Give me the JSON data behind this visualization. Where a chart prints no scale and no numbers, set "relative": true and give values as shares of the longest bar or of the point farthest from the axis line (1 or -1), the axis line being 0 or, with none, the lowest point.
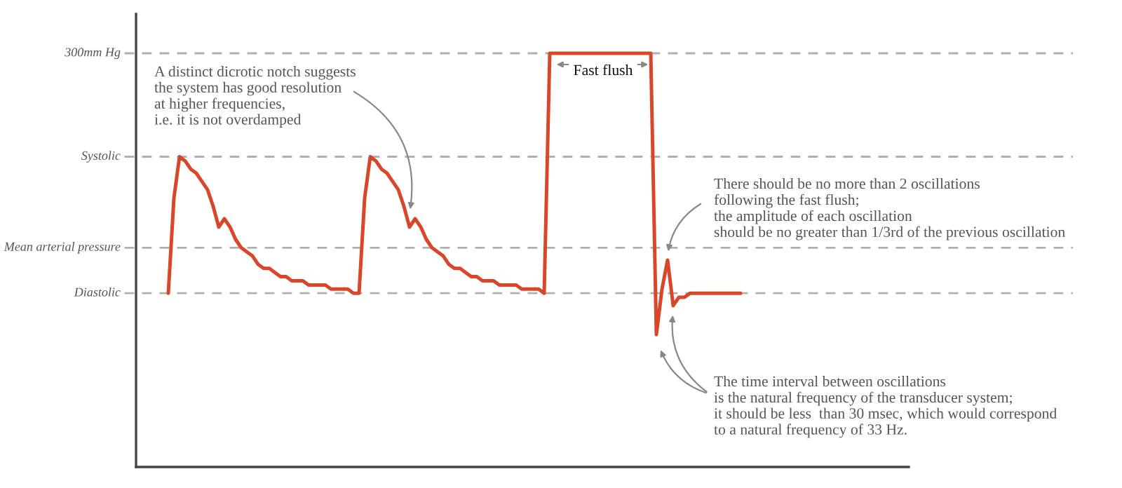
{
  "chart_data": {
    "type": "line",
    "relative": true,
    "categories": [
      null,
      null,
      null,
      null,
      null,
      null,
      null,
      null,
      null,
      null,
      null,
      null,
      null,
      null,
      null,
      null,
      null,
      null,
      null,
      null,
      null,
      null,
      null,
      null,
      null,
      null,
      null,
      null,
      null,
      null,
      null,
      null,
      null,
      null,
      null,
      null,
      null,
      null,
      null,
      null,
      null,
      null,
      null,
      null,
      null,
      null,
      null,
      null,
      null,
      null,
      null,
      null,
      null,
      null,
      null,
      null,
      null,
      null,
      null,
      null,
      null,
      null,
      null,
      null,
      null,
      null,
      null,
      null,
      null,
      null,
      null,
      null,
      null,
      null,
      null,
      null,
      null,
      null,
      null,
      null,
      null,
      null,
      null,
      null,
      null,
      null,
      null,
      null,
      null,
      null,
      null,
      null,
      null,
      null,
      null,
      null,
      null,
      null,
      null,
      null,
      null,
      null,
      null
    ],
    "series": [
      {
        "color": "#d9472b",
        "values": [
          0.42,
          0.65,
          0.75,
          0.74,
          0.72,
          0.71,
          0.69,
          0.67,
          0.63,
          0.58,
          0.6,
          0.58,
          0.55,
          0.53,
          0.52,
          0.51,
          0.49,
          0.48,
          0.48,
          0.47,
          0.46,
          0.46,
          0.45,
          0.45,
          0.45,
          0.44,
          0.44,
          0.44,
          0.44,
          0.43,
          0.43,
          0.43,
          0.43,
          0.42,
          0.42,
          0.65,
          0.75,
          0.74,
          0.72,
          0.71,
          0.69,
          0.67,
          0.63,
          0.58,
          0.6,
          0.58,
          0.55,
          0.53,
          0.52,
          0.51,
          0.49,
          0.48,
          0.48,
          0.47,
          0.46,
          0.46,
          0.45,
          0.45,
          0.45,
          0.44,
          0.44,
          0.44,
          0.44,
          0.43,
          0.43,
          0.43,
          0.43,
          0.42,
          1,
          1,
          1,
          1,
          1,
          1,
          1,
          1,
          1,
          1,
          1,
          1,
          1,
          1,
          1,
          1,
          1,
          1,
          1,
          0.32,
          0.43,
          0.5,
          0.39,
          0.41,
          0.41,
          0.42,
          0.42,
          0.42,
          0.42,
          0.42,
          0.42,
          0.42,
          0.42,
          0.42,
          0.42
        ]
      }
    ],
    "ref_lines": [
      {
        "axis": "y",
        "value": 1,
        "label": "300mm Hg",
        "color": "#b0b0b0",
        "line_style": "dashed"
      },
      {
        "axis": "y",
        "value": 0.75,
        "label": "Systolic",
        "color": "#b0b0b0",
        "line_style": "dashed"
      },
      {
        "axis": "y",
        "value": 0.53,
        "label": "Mean arterial pressure",
        "color": "#b0b0b0",
        "line_style": "dashed"
      },
      {
        "axis": "y",
        "value": 0.42,
        "label": "Diastolic",
        "color": "#b0b0b0",
        "line_style": "dashed"
      }
    ],
    "annotations": [
      "A distinct dicrotic notch suggests\nthe system has good resolution\nat higher frequencies,\ni.e. it is not overdamped",
      "Fast flush",
      "There should be no more than 2 oscillations\nfollowing the fast flush;\nthe amplitude of each oscillation\nshould be no greater than 1/3rd of the previous oscillation",
      "The time interval between oscillations\nis the natural frequency of the transducer system;\nit should be less  than 30 msec, which would correspond\nto a natural frequency of 33 Hz."
    ]
  }
}
